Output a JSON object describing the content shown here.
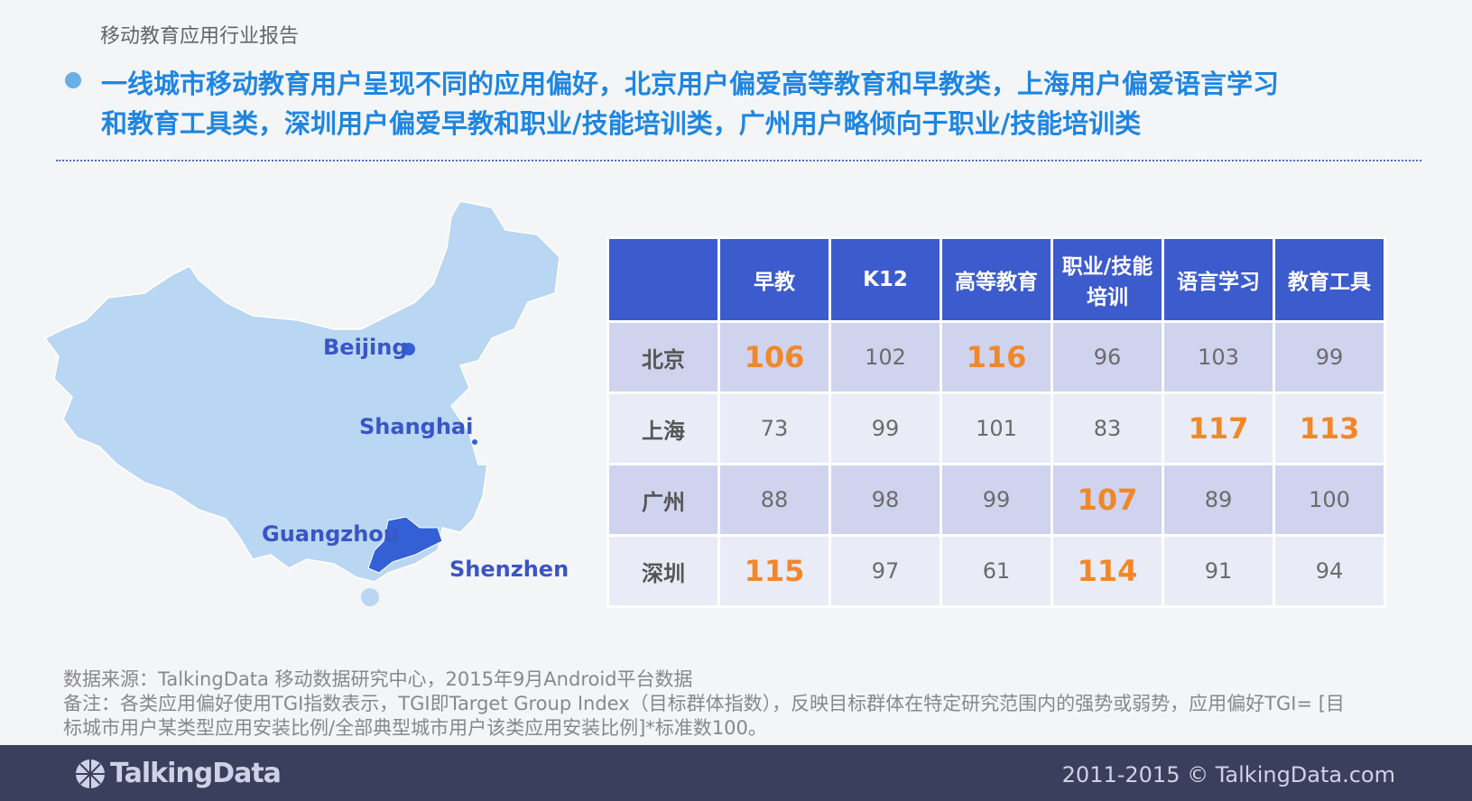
{
  "header": {
    "report_title": "移动教育应用行业报告",
    "headline": [
      "一线城市移动教育用户呈现不同的应用偏好，北京用户偏爱高等教育和早教类，上海用户偏爱语言学习",
      "和教育工具类，深圳用户偏爱早教和职业/技能培训类，广州用户略倾向于职业/技能培训类"
    ]
  },
  "map": {
    "labels": [
      "Beijing",
      "Shanghai",
      "Guangzhou",
      "Shenzhen"
    ]
  },
  "table": {
    "columns": [
      "早教",
      "K12",
      "高等教育",
      "职业/技能培训",
      "语言学习",
      "教育工具"
    ],
    "highlight_color": "#f0882a",
    "rows": [
      {
        "city": "北京",
        "values": [
          106,
          102,
          116,
          96,
          103,
          99
        ],
        "highlight": [
          true,
          false,
          true,
          false,
          false,
          false
        ]
      },
      {
        "city": "上海",
        "values": [
          73,
          99,
          101,
          83,
          117,
          113
        ],
        "highlight": [
          false,
          false,
          false,
          false,
          true,
          true
        ]
      },
      {
        "city": "广州",
        "values": [
          88,
          98,
          99,
          107,
          89,
          100
        ],
        "highlight": [
          false,
          false,
          false,
          true,
          false,
          false
        ]
      },
      {
        "city": "深圳",
        "values": [
          115,
          97,
          61,
          114,
          91,
          94
        ],
        "highlight": [
          true,
          false,
          false,
          true,
          false,
          false
        ]
      }
    ]
  },
  "footer": {
    "source": "数据来源：TalkingData 移动数据研究中心，2015年9月Android平台数据",
    "note": "备注：各类应用偏好使用TGI指数表示，TGI即Target Group Index（目标群体指数），反映目标群体在特定研究范围内的强势或弱势，应用偏好TGI= [目标城市用户某类型应用安装比例/全部典型城市用户该类应用安装比例]*标准数100。",
    "brand": "TalkingData",
    "copyright": "2011-2015 © TalkingData.com"
  }
}
